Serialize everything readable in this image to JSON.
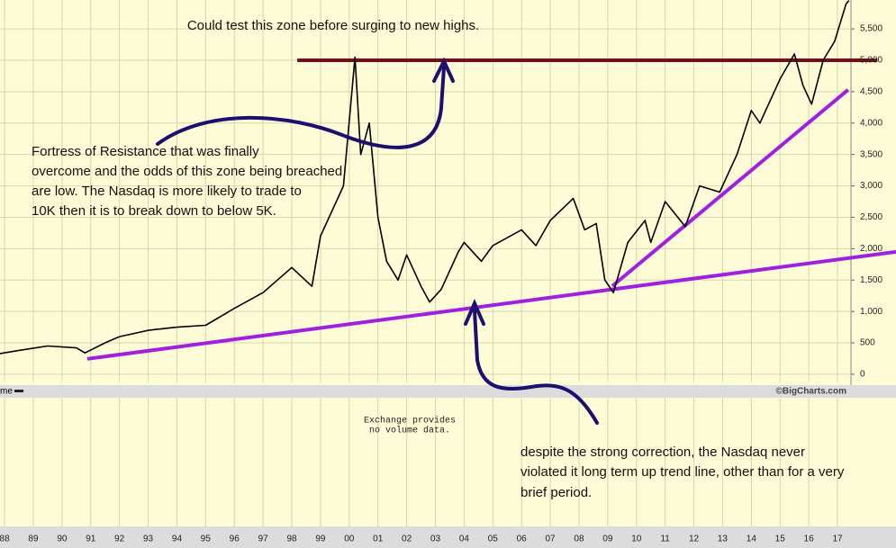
{
  "chart_data": {
    "type": "line",
    "title": "Could test this zone before surging to new highs.",
    "annotations": {
      "resistance": [
        "Fortress of Resistance that was finally",
        "overcome and the odds of this zone being breached",
        "are low. The Nasdaq is more likely to trade to",
        "10K then it is to break down to below 5K."
      ],
      "trendline": [
        "despite the strong correction, the Nasdaq never",
        "violated it long term up trend line, other than for a very",
        "brief period."
      ]
    },
    "volume_label": "me",
    "volume_note": [
      "Exchange provides",
      "no volume data."
    ],
    "credit": "©BigCharts.com",
    "color": "#000000",
    "x": [
      1987.84,
      1988.5,
      1989.5,
      1990.5,
      1990.8,
      1991.5,
      1992,
      1993,
      1994,
      1995,
      1996,
      1997,
      1998,
      1998.7,
      1999,
      1999.8,
      2000.2,
      2000.4,
      2000.7,
      2001,
      2001.3,
      2001.7,
      2002,
      2002.5,
      2002.8,
      2003.2,
      2003.8,
      2004,
      2004.6,
      2005,
      2006,
      2006.5,
      2007,
      2007.8,
      2008.2,
      2008.6,
      2008.9,
      2009.2,
      2009.7,
      2010.3,
      2010.5,
      2011,
      2011.7,
      2012.2,
      2012.9,
      2013.5,
      2014,
      2014.3,
      2015,
      2015.5,
      2015.8,
      2016.1,
      2016.5,
      2016.9,
      2017.3,
      2017.4
    ],
    "values": [
      330,
      380,
      450,
      420,
      340,
      500,
      600,
      700,
      750,
      780,
      1050,
      1300,
      1700,
      1400,
      2200,
      3000,
      5050,
      3500,
      4000,
      2500,
      1800,
      1500,
      1900,
      1400,
      1150,
      1350,
      1950,
      2100,
      1800,
      2050,
      2300,
      2050,
      2450,
      2800,
      2300,
      2400,
      1500,
      1300,
      2100,
      2450,
      2100,
      2750,
      2350,
      3000,
      2900,
      3500,
      4200,
      4000,
      4700,
      5100,
      4600,
      4300,
      5000,
      5300,
      5900,
      5950
    ],
    "annotation_lines": [
      {
        "color": "#7a0a1e",
        "x": [
          1998.19,
          2018.39
        ],
        "values": [
          5000,
          5000
        ]
      },
      {
        "color": "#a020e0",
        "x": [
          1990.88,
          2019.04
        ],
        "values": [
          245,
          1950
        ]
      },
      {
        "color": "#a020e0",
        "x": [
          2009.16,
          2017.37
        ],
        "values": [
          1405,
          4530
        ]
      }
    ],
    "xlim": [
      1987.84,
      2017.47
    ],
    "ylim": [
      -130,
      5960
    ],
    "xticks": [
      {
        "value": 1988,
        "label": "88"
      },
      {
        "value": 1989,
        "label": "89"
      },
      {
        "value": 1990,
        "label": "90"
      },
      {
        "value": 1991,
        "label": "91"
      },
      {
        "value": 1992,
        "label": "92"
      },
      {
        "value": 1993,
        "label": "93"
      },
      {
        "value": 1994,
        "label": "94"
      },
      {
        "value": 1995,
        "label": "95"
      },
      {
        "value": 1996,
        "label": "96"
      },
      {
        "value": 1997,
        "label": "97"
      },
      {
        "value": 1998,
        "label": "98"
      },
      {
        "value": 1999,
        "label": "99"
      },
      {
        "value": 2000,
        "label": "00"
      },
      {
        "value": 2001,
        "label": "01"
      },
      {
        "value": 2002,
        "label": "02"
      },
      {
        "value": 2003,
        "label": "03"
      },
      {
        "value": 2004,
        "label": "04"
      },
      {
        "value": 2005,
        "label": "05"
      },
      {
        "value": 2006,
        "label": "06"
      },
      {
        "value": 2007,
        "label": "07"
      },
      {
        "value": 2008,
        "label": "08"
      },
      {
        "value": 2009,
        "label": "09"
      },
      {
        "value": 2010,
        "label": "10"
      },
      {
        "value": 2011,
        "label": "11"
      },
      {
        "value": 2012,
        "label": "12"
      },
      {
        "value": 2013,
        "label": "13"
      },
      {
        "value": 2014,
        "label": "14"
      },
      {
        "value": 2015,
        "label": "15"
      },
      {
        "value": 2016,
        "label": "16"
      },
      {
        "value": 2017,
        "label": "17"
      }
    ],
    "yticks": [
      0,
      500,
      {
        "value": 1000,
        "label": "1,000"
      },
      {
        "value": 1500,
        "label": "1,500"
      },
      {
        "value": 2000,
        "label": "2,000"
      },
      {
        "value": 2500,
        "label": "2,500"
      },
      {
        "value": 3000,
        "label": "3,000"
      },
      {
        "value": 3500,
        "label": "3,500"
      },
      {
        "value": 4000,
        "label": "4,000"
      },
      {
        "value": 4500,
        "label": "4,500"
      },
      {
        "value": 5000,
        "label": "5,000"
      },
      {
        "value": 5500,
        "label": "5,500"
      }
    ],
    "grid": true
  }
}
